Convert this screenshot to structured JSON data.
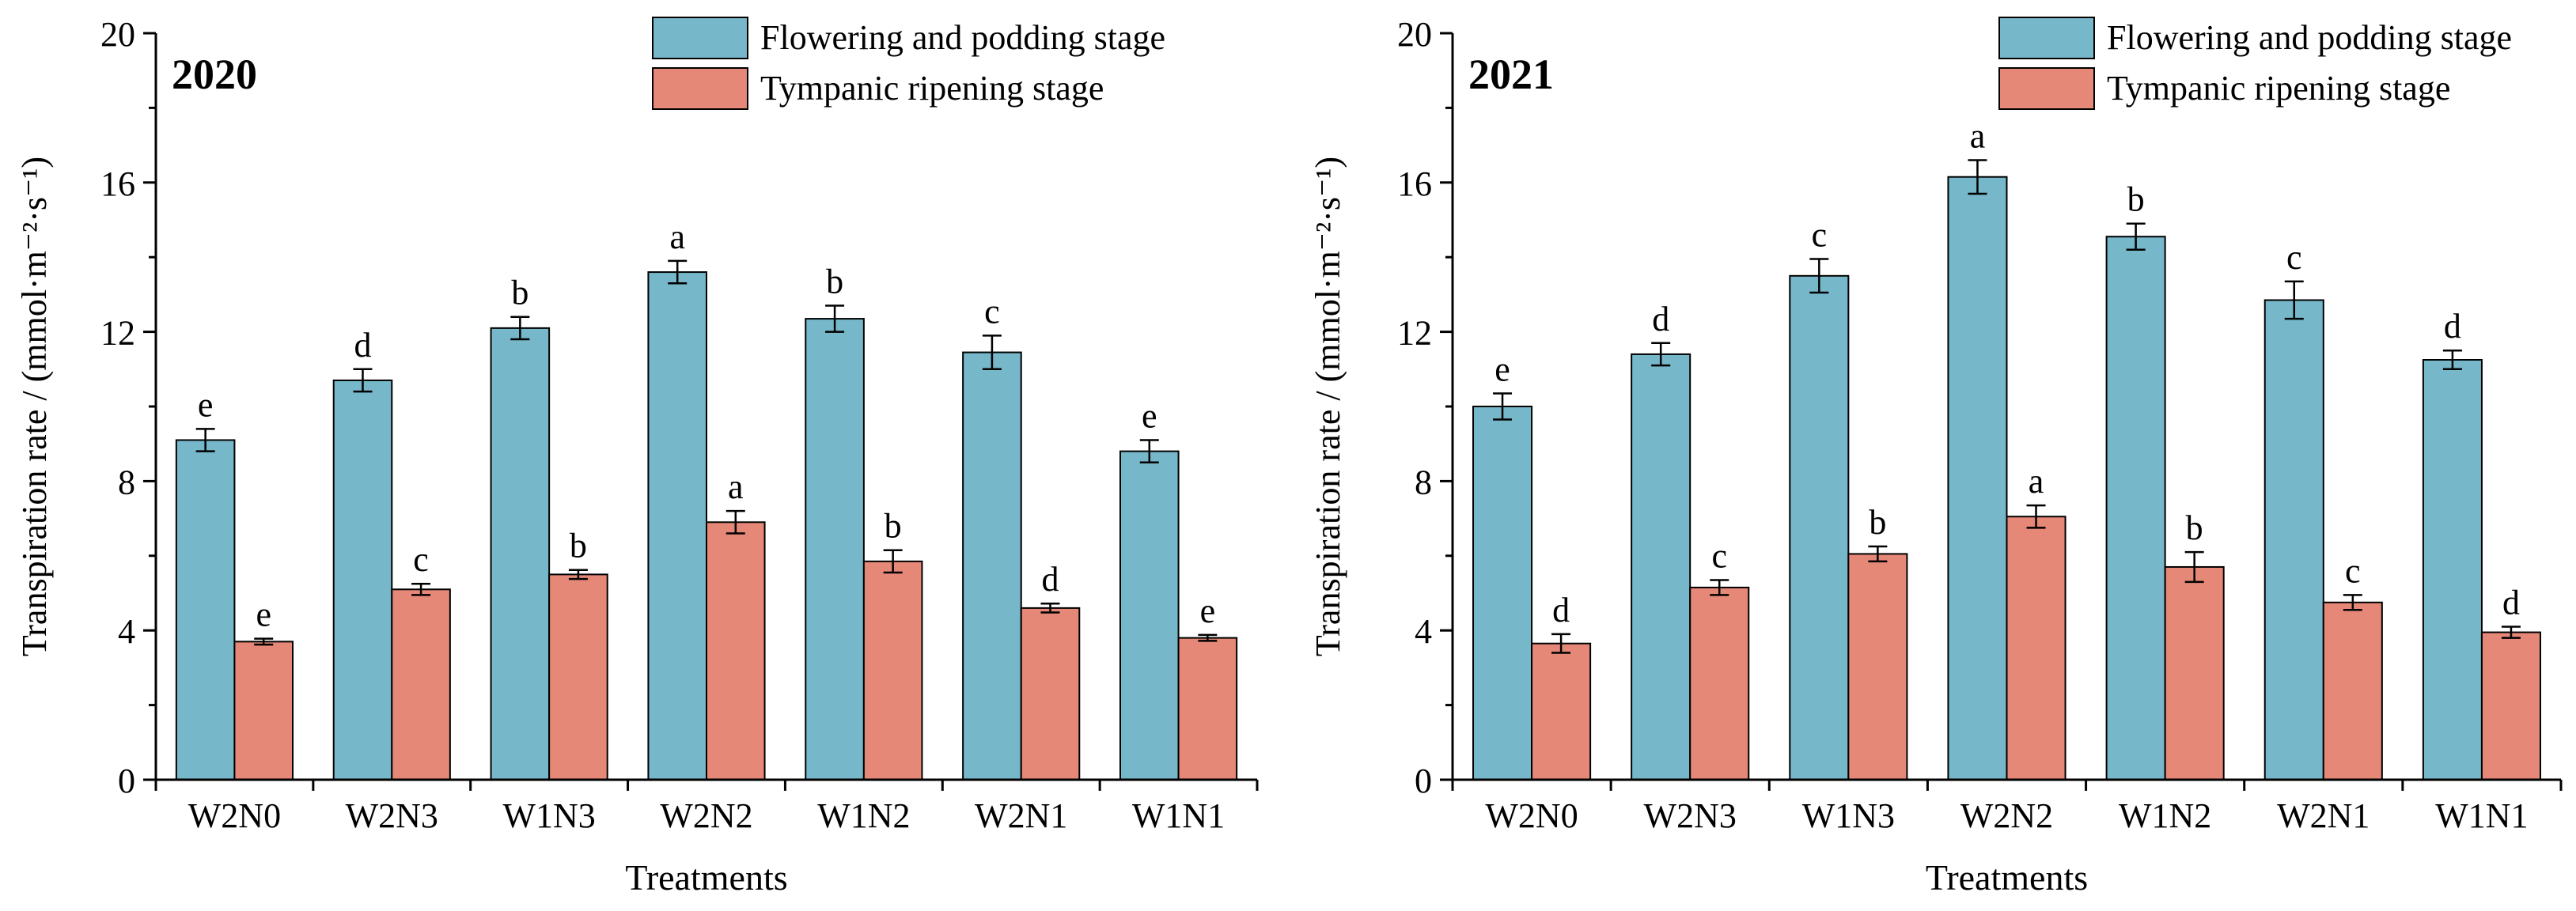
{
  "chart_data": [
    {
      "type": "bar",
      "title": "2020",
      "xlabel": "Treatments",
      "ylabel": "Transpiration rate / (mmol·m⁻²·s⁻¹)",
      "ylim": [
        0,
        20
      ],
      "yticks": [
        0,
        4,
        8,
        12,
        16,
        20
      ],
      "categories": [
        "W2N0",
        "W2N3",
        "W1N3",
        "W2N2",
        "W1N2",
        "W2N1",
        "W1N1"
      ],
      "legend_position": "top-right",
      "series": [
        {
          "name": "Flowering and podding stage",
          "color": "#76B7C9",
          "values": [
            9.1,
            10.7,
            12.1,
            13.6,
            12.35,
            11.45,
            8.8
          ],
          "errors": [
            0.3,
            0.3,
            0.3,
            0.3,
            0.35,
            0.45,
            0.3
          ],
          "labels": [
            "e",
            "d",
            "b",
            "a",
            "b",
            "c",
            "e"
          ]
        },
        {
          "name": "Tympanic ripening stage",
          "color": "#E58877",
          "values": [
            3.7,
            5.1,
            5.5,
            6.9,
            5.85,
            4.6,
            3.8
          ],
          "errors": [
            0.08,
            0.15,
            0.12,
            0.3,
            0.3,
            0.12,
            0.08
          ],
          "labels": [
            "e",
            "c",
            "b",
            "a",
            "b",
            "d",
            "e"
          ]
        }
      ]
    },
    {
      "type": "bar",
      "title": "2021",
      "xlabel": "Treatments",
      "ylabel": "Transpiration rate / (mmol·m⁻²·s⁻¹)",
      "ylim": [
        0,
        20
      ],
      "yticks": [
        0,
        4,
        8,
        12,
        16,
        20
      ],
      "categories": [
        "W2N0",
        "W2N3",
        "W1N3",
        "W2N2",
        "W1N2",
        "W2N1",
        "W1N1"
      ],
      "legend_position": "top-right",
      "series": [
        {
          "name": "Flowering and podding stage",
          "color": "#76B7C9",
          "values": [
            10.0,
            11.4,
            13.5,
            16.15,
            14.55,
            12.85,
            11.25
          ],
          "errors": [
            0.35,
            0.3,
            0.45,
            0.45,
            0.35,
            0.5,
            0.25
          ],
          "labels": [
            "e",
            "d",
            "c",
            "a",
            "b",
            "c",
            "d"
          ]
        },
        {
          "name": "Tympanic ripening stage",
          "color": "#E58877",
          "values": [
            3.65,
            5.15,
            6.05,
            7.05,
            5.7,
            4.75,
            3.95
          ],
          "errors": [
            0.25,
            0.2,
            0.2,
            0.3,
            0.4,
            0.2,
            0.15
          ],
          "labels": [
            "d",
            "c",
            "b",
            "a",
            "b",
            "c",
            "d"
          ]
        }
      ]
    }
  ]
}
